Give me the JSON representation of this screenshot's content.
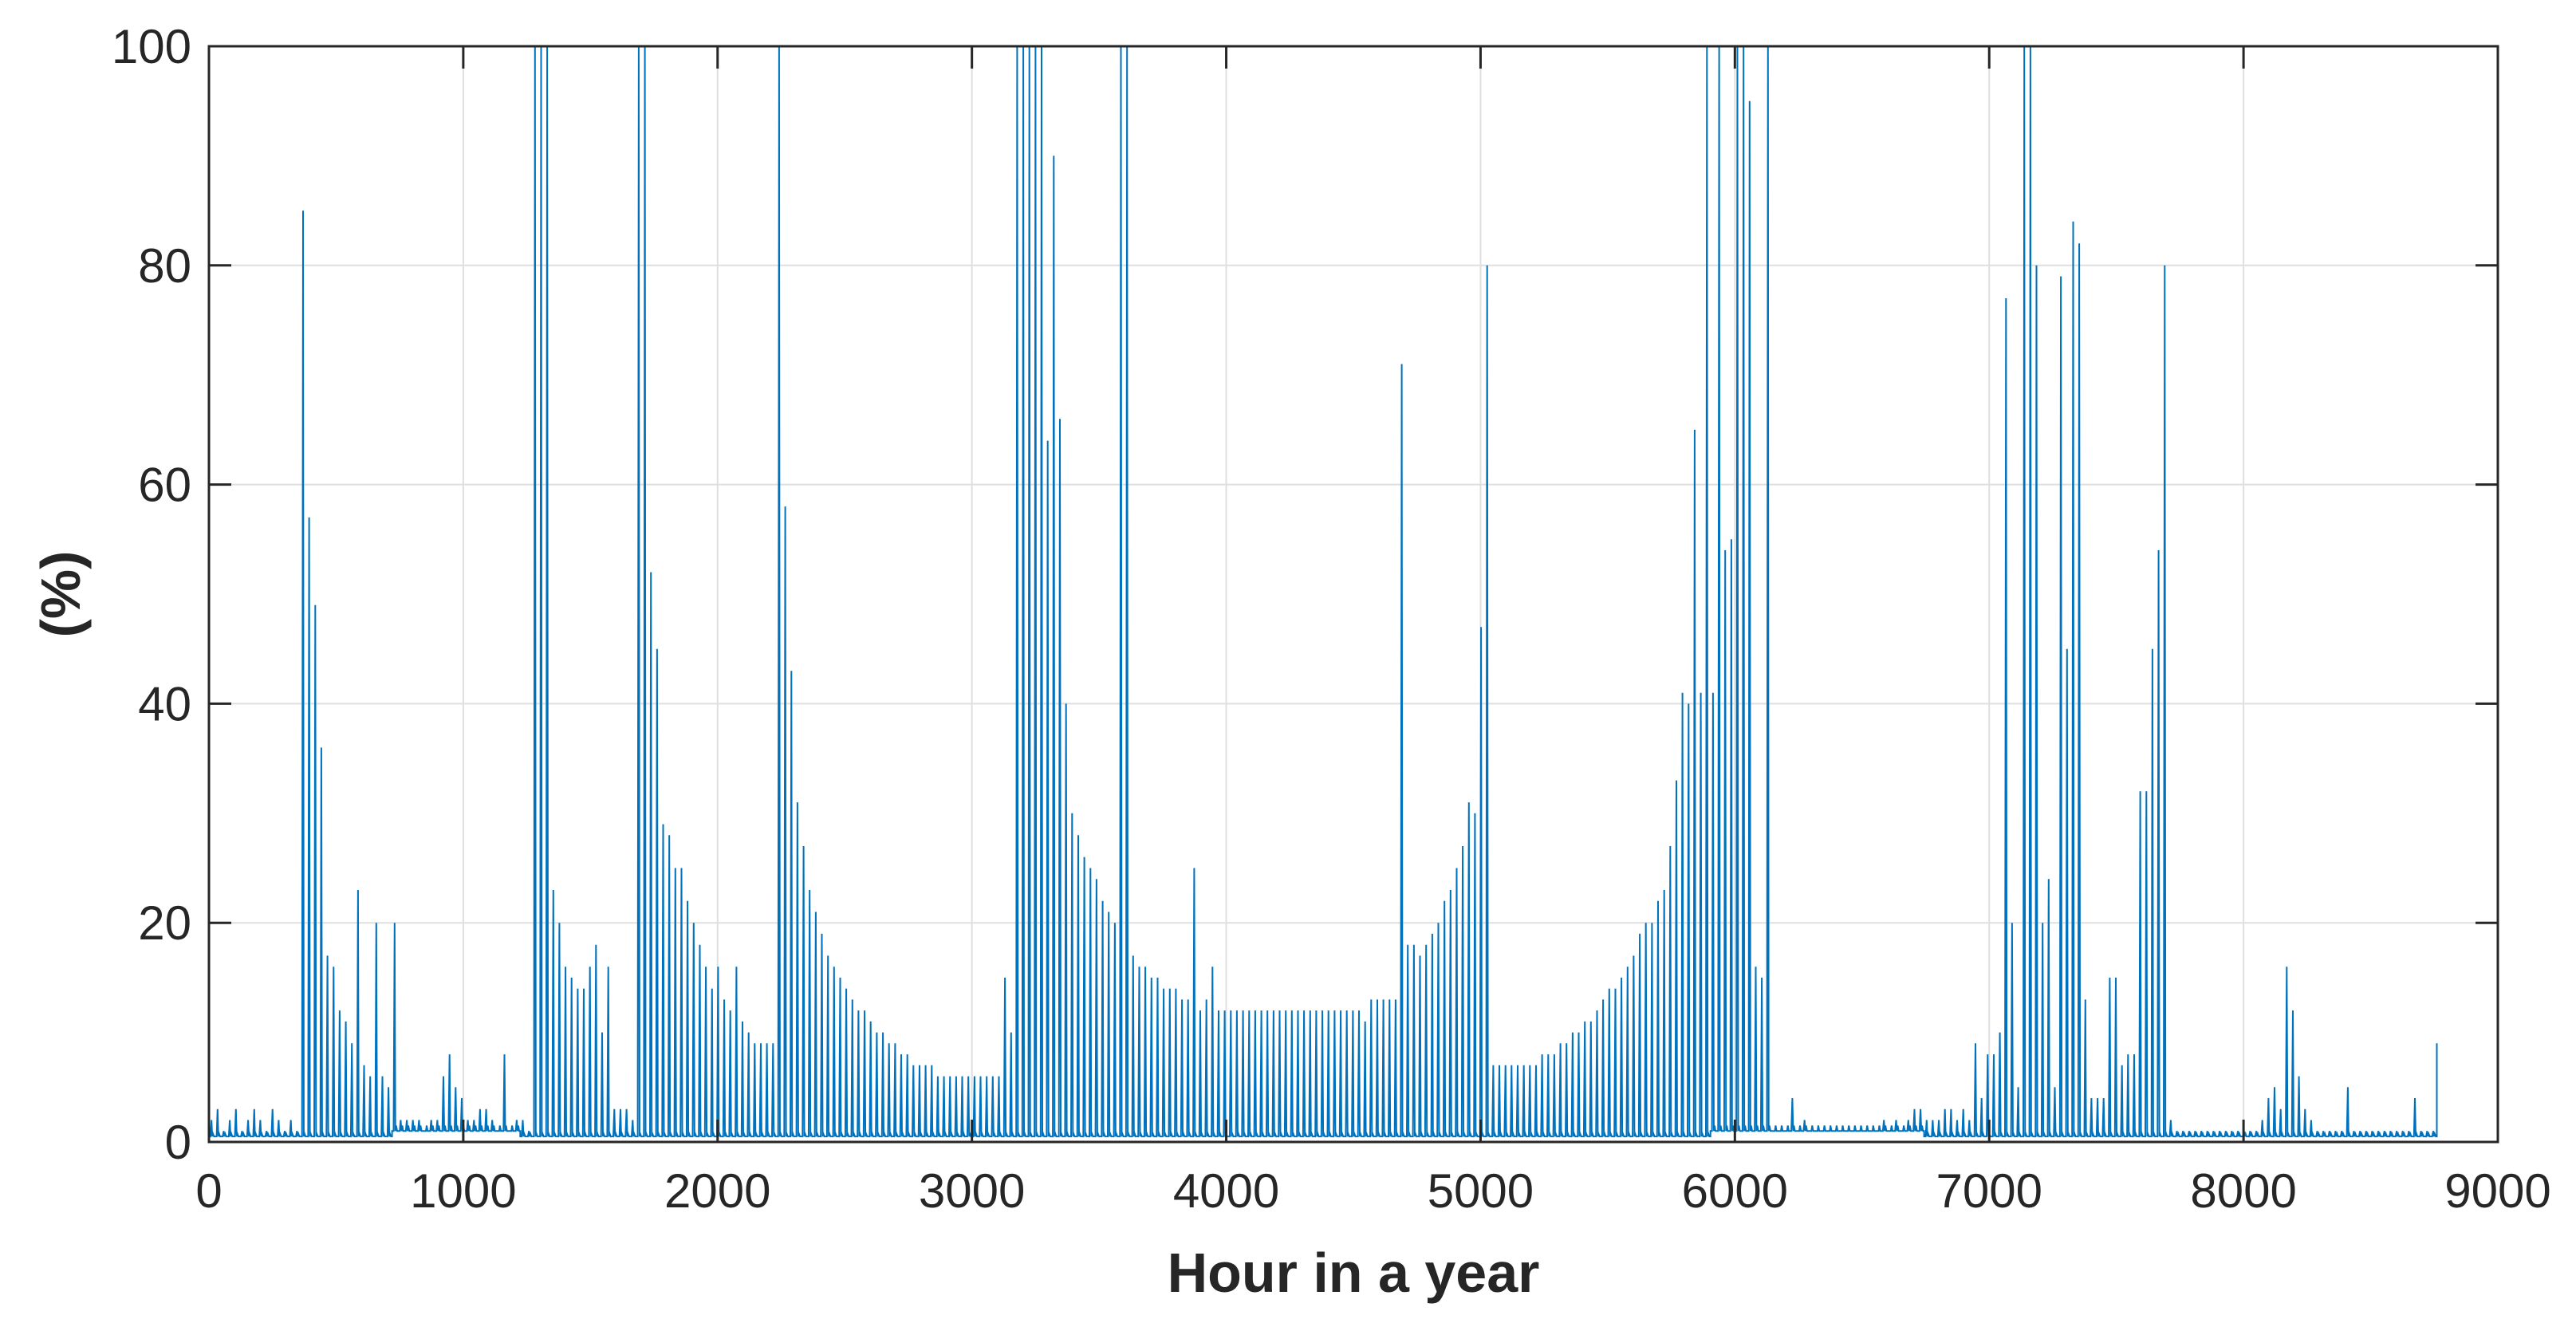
{
  "chart_data": {
    "type": "line",
    "title": "",
    "xlabel": "Hour in a year",
    "ylabel": "(%)",
    "xlim": [
      0,
      9000
    ],
    "ylim": [
      0,
      100
    ],
    "xticks": [
      0,
      1000,
      2000,
      3000,
      4000,
      5000,
      6000,
      7000,
      8000,
      9000
    ],
    "yticks": [
      0,
      20,
      40,
      60,
      80,
      100
    ],
    "xtick_labels": [
      "0",
      "1000",
      "2000",
      "3000",
      "4000",
      "5000",
      "6000",
      "7000",
      "8000",
      "9000"
    ],
    "ytick_labels": [
      "0",
      "20",
      "40",
      "60",
      "80",
      "100"
    ],
    "grid": true,
    "line_color": "#0072BD",
    "series": [
      {
        "x_start": 0,
        "x_end": 8760,
        "x_step": 24,
        "daily_peak": [
          2,
          3,
          1,
          2,
          3,
          1,
          2,
          3,
          2,
          1,
          3,
          2,
          1,
          2,
          1,
          85,
          57,
          49,
          36,
          17,
          16,
          12,
          11,
          9,
          23,
          7,
          6,
          20,
          6,
          5,
          20,
          2,
          2,
          2,
          2,
          1,
          2,
          2,
          6,
          8,
          5,
          4,
          2,
          2,
          3,
          3,
          2,
          1,
          8,
          1,
          2,
          2,
          1,
          100,
          100,
          100,
          23,
          20,
          16,
          15,
          14,
          14,
          16,
          18,
          10,
          16,
          3,
          3,
          3,
          2,
          100,
          100,
          52,
          45,
          29,
          28,
          25,
          25,
          22,
          20,
          18,
          16,
          14,
          16,
          13,
          12,
          16,
          11,
          10,
          9,
          9,
          9,
          9,
          100,
          58,
          43,
          31,
          27,
          23,
          21,
          19,
          17,
          16,
          15,
          14,
          13,
          12,
          12,
          11,
          10,
          10,
          9,
          9,
          8,
          8,
          7,
          7,
          7,
          7,
          6,
          6,
          6,
          6,
          6,
          6,
          6,
          6,
          6,
          6,
          6,
          15,
          10,
          100,
          100,
          100,
          100,
          100,
          64,
          90,
          66,
          40,
          30,
          28,
          26,
          25,
          24,
          22,
          21,
          20,
          100,
          100,
          17,
          16,
          16,
          15,
          15,
          14,
          14,
          14,
          13,
          13,
          25,
          12,
          13,
          16,
          12,
          12,
          12,
          12,
          12,
          12,
          12,
          12,
          12,
          12,
          12,
          12,
          12,
          12,
          12,
          12,
          12,
          12,
          12,
          12,
          12,
          12,
          12,
          12,
          11,
          13,
          13,
          13,
          13,
          13,
          71,
          18,
          18,
          17,
          18,
          19,
          20,
          22,
          23,
          25,
          27,
          31,
          30,
          47,
          80,
          7,
          7,
          7,
          7,
          7,
          7,
          7,
          7,
          8,
          8,
          8,
          9,
          9,
          10,
          10,
          11,
          11,
          12,
          13,
          14,
          14,
          15,
          16,
          17,
          19,
          20,
          20,
          22,
          23,
          27,
          33,
          41,
          40,
          65,
          41,
          100,
          41,
          100,
          54,
          55,
          100,
          100,
          95,
          16,
          15,
          100,
          1,
          1,
          1,
          4,
          1,
          2,
          1,
          1,
          1,
          1,
          1,
          1,
          1,
          1,
          1,
          1,
          1,
          1,
          2,
          1,
          2,
          1,
          2,
          3,
          3,
          2,
          2,
          2,
          3,
          3,
          2,
          3,
          2,
          9,
          4,
          8,
          8,
          10,
          77,
          20,
          5,
          100,
          100,
          80,
          20,
          24,
          5,
          79,
          45,
          84,
          82,
          13,
          4,
          4,
          4,
          15,
          15,
          7,
          8,
          8,
          32,
          32,
          45,
          54,
          80,
          2,
          1,
          1,
          1,
          1,
          1,
          1,
          1,
          1,
          1,
          1,
          1,
          1,
          1,
          1,
          2,
          4,
          5,
          3,
          16,
          12,
          6,
          3,
          2,
          1,
          1,
          1,
          1,
          1,
          5,
          1,
          1,
          1,
          1,
          1,
          1,
          1,
          1,
          1,
          1,
          4,
          1,
          1,
          1,
          1,
          1,
          1,
          1,
          1,
          1,
          2,
          9,
          4,
          3,
          1
        ],
        "daily_base": [
          0.5,
          0.5,
          0.5,
          0.5,
          0.5,
          0.5,
          0.5,
          0.5,
          0.5,
          0.5,
          0.5,
          0.5,
          0.5,
          0.5,
          0.5,
          0.5,
          0.5,
          0.5,
          0.5,
          0.5,
          0.5,
          0.5,
          0.5,
          0.5,
          0.5,
          0.5,
          0.5,
          0.5,
          0.5,
          0.5,
          1,
          1,
          1,
          1,
          1,
          1,
          1,
          1,
          1,
          1,
          1,
          1,
          1,
          1,
          1,
          1,
          1,
          1,
          1,
          1,
          1,
          0.5,
          0.5,
          0.5,
          0.5,
          0.5,
          0.5,
          0.5,
          0.5,
          0.5,
          0.5,
          0.5,
          0.5,
          0.5,
          0.5,
          0.5,
          0.5,
          0.5,
          0.5,
          0.5,
          0.5,
          0.5,
          0.5,
          0.5,
          0.5,
          0.5,
          0.5,
          0.5,
          0.5,
          0.5,
          0.5,
          0.5,
          0.5,
          0.5,
          0.5,
          0.5,
          0.5,
          0.5,
          0.5,
          0.5,
          0.5,
          0.5,
          0.5,
          0.5,
          0.5,
          0.5,
          0.5,
          0.5,
          0.5,
          0.5,
          0.5,
          0.5,
          0.5,
          0.5,
          0.5,
          0.5,
          0.5,
          0.5,
          0.5,
          0.5,
          0.5,
          0.5,
          0.5,
          0.5,
          0.5,
          0.5,
          0.5,
          0.5,
          0.5,
          0.5,
          0.5,
          0.5,
          0.5,
          0.5,
          0.5,
          0.5,
          0.5,
          0.5,
          0.5,
          0.5,
          0.5,
          0.5,
          0.5,
          0.5,
          0.5,
          0.5,
          0.5,
          0.5,
          0.5,
          0.5,
          0.5,
          0.5,
          0.5,
          0.5,
          0.5,
          0.5,
          0.5,
          0.5,
          0.5,
          0.5,
          0.5,
          0.5,
          0.5,
          0.5,
          0.5,
          0.5,
          0.5,
          0.5,
          0.5,
          0.5,
          0.5,
          0.5,
          0.5,
          0.5,
          0.5,
          0.5,
          0.5,
          0.5,
          0.5,
          0.5,
          0.5,
          0.5,
          0.5,
          0.5,
          0.5,
          0.5,
          0.5,
          0.5,
          0.5,
          0.5,
          0.5,
          0.5,
          0.5,
          0.5,
          0.5,
          0.5,
          0.5,
          0.5,
          0.5,
          0.5,
          0.5,
          0.5,
          0.5,
          0.5,
          0.5,
          0.5,
          0.5,
          0.5,
          0.5,
          0.5,
          0.5,
          0.5,
          0.5,
          0.5,
          0.5,
          0.5,
          0.5,
          0.5,
          0.5,
          0.5,
          0.5,
          0.5,
          0.5,
          0.5,
          0.5,
          0.5,
          0.5,
          0.5,
          0.5,
          0.5,
          0.5,
          0.5,
          0.5,
          0.5,
          0.5,
          0.5,
          0.5,
          0.5,
          0.5,
          0.5,
          0.5,
          0.5,
          0.5,
          0.5,
          0.5,
          0.5,
          0.5,
          0.5,
          0.5,
          0.5,
          0.5,
          0.5,
          0.5,
          0.5,
          0.5,
          0.5,
          1,
          1,
          1,
          1,
          1,
          1,
          1,
          1,
          1,
          1,
          1,
          1,
          1,
          1,
          1,
          1,
          1,
          1,
          1,
          1,
          1,
          1,
          1,
          1,
          1,
          1,
          1,
          1,
          1,
          1,
          1,
          1,
          1,
          1,
          1,
          0.5,
          0.5,
          0.5,
          0.5,
          0.5,
          0.5,
          0.5,
          0.5,
          0.5,
          0.5,
          0.5,
          0.5,
          0.5,
          0.5,
          0.5,
          0.5,
          0.5,
          0.5,
          0.5,
          0.5,
          0.5,
          0.5,
          0.5,
          0.5,
          0.5,
          0.5,
          0.5,
          0.5,
          0.5,
          0.5,
          0.5,
          0.5,
          0.5,
          0.5,
          0.5,
          0.5,
          0.5,
          0.5,
          0.5,
          0.5,
          0.5,
          0.5,
          0.5,
          0.5,
          0.5,
          0.5,
          0.5,
          0.5,
          0.5,
          0.5,
          0.5,
          0.5,
          0.5,
          0.5,
          0.5,
          0.5,
          0.5,
          0.5,
          0.5,
          0.5,
          0.5,
          0.5,
          0.5,
          0.5,
          0.5,
          0.5,
          0.5,
          0.5,
          0.5,
          0.5,
          0.5,
          0.5,
          0.5,
          0.5,
          0.5,
          0.5,
          0.5,
          0.5,
          0.5,
          0.5,
          0.5,
          0.5,
          0.5,
          0.5
        ]
      }
    ]
  }
}
